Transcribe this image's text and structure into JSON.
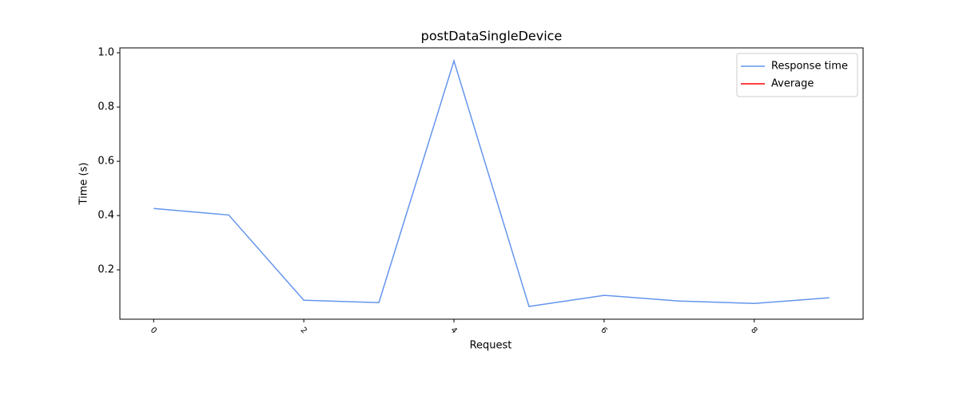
{
  "chart_data": {
    "type": "line",
    "title": "postDataSingleDevice",
    "x_label": "Request",
    "y_label": "Time (s)",
    "x": [
      0,
      1,
      2,
      3,
      4,
      5,
      6,
      7,
      8,
      9
    ],
    "series": [
      {
        "name": "Response time",
        "color": "#6495ed",
        "values": [
          0.426,
          0.402,
          0.088,
          0.079,
          0.97,
          0.065,
          0.106,
          0.085,
          0.076,
          0.097
        ]
      },
      {
        "name": "Average",
        "color": "#ff0000",
        "values": [
          null,
          null,
          null,
          null,
          null,
          null,
          null,
          null,
          null,
          null
        ]
      }
    ],
    "xlim": [
      -0.45,
      9.45
    ],
    "xticks": [
      0,
      2,
      4,
      6,
      8
    ],
    "ylim": [
      0.018,
      1.018
    ],
    "yticks": [
      0.2,
      0.4,
      0.6,
      0.8,
      {
        "value": 1,
        "label": "1.0"
      }
    ],
    "legend": "upper right",
    "grid": false
  }
}
